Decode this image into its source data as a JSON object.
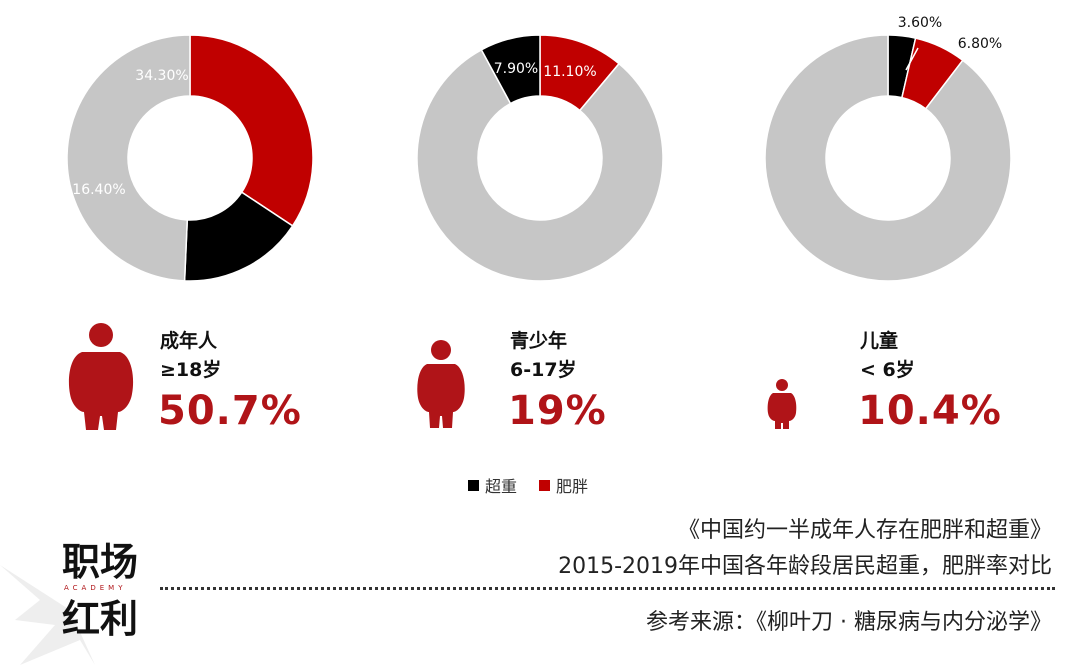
{
  "chart_data": {
    "type": "pie",
    "legend": [
      {
        "label": "超重",
        "color": "#000000"
      },
      {
        "label": "肥胖",
        "color": "#c00000"
      }
    ],
    "groups": [
      {
        "name": "成年人",
        "age": "≥18岁",
        "total": "50.7%",
        "slices": [
          {
            "label": "肥胖",
            "value": 34.3,
            "text": "34.30%",
            "color": "#c00000"
          },
          {
            "label": "超重",
            "value": 16.4,
            "text": "16.40%",
            "color": "#000000"
          },
          {
            "label": "",
            "value": 49.3,
            "text": "",
            "color": "#c6c6c6"
          }
        ]
      },
      {
        "name": "青少年",
        "age": "6-17岁",
        "total": "19%",
        "slices": [
          {
            "label": "肥胖",
            "value": 11.1,
            "text": "11.10%",
            "color": "#c00000"
          },
          {
            "label": "",
            "value": 81.0,
            "text": "",
            "color": "#c6c6c6"
          },
          {
            "label": "超重",
            "value": 7.9,
            "text": "7.90%",
            "color": "#000000"
          }
        ]
      },
      {
        "name": "儿童",
        "age": "< 6岁",
        "total": "10.4%",
        "slices": [
          {
            "label": "超重",
            "value": 3.6,
            "text": "3.60%",
            "color": "#000000"
          },
          {
            "label": "肥胖",
            "value": 6.8,
            "text": "6.80%",
            "color": "#c00000"
          },
          {
            "label": "",
            "value": 89.6,
            "text": "",
            "color": "#c6c6c6"
          }
        ]
      }
    ]
  },
  "titles": {
    "line1": "《中国约一半成年人存在肥胖和超重》",
    "line2": "2015-2019年中国各年龄段居民超重，肥胖率对比",
    "source": "参考来源：《柳叶刀 · 糖尿病与内分泌学》"
  },
  "logo": {
    "top": "职场",
    "bottom": "红利",
    "tag": "ACADEMY"
  },
  "colors": {
    "accent": "#b01418",
    "overweight": "#000000",
    "obese": "#c00000",
    "other": "#c6c6c6"
  }
}
